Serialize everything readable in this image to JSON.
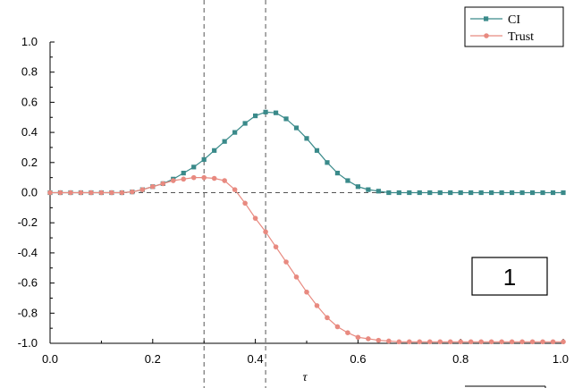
{
  "chart_data": {
    "type": "line",
    "xlabel": "τ",
    "ylabel": "",
    "xlim": [
      0.0,
      1.0
    ],
    "ylim": [
      -1.0,
      1.0
    ],
    "x_ticks": [
      "0.0",
      "0.2",
      "0.4",
      "0.6",
      "0.8",
      "1.0"
    ],
    "y_ticks": [
      "-1.0",
      "-0.8",
      "-0.6",
      "-0.4",
      "-0.2",
      "0.0",
      "0.2",
      "0.4",
      "0.6",
      "0.8",
      "1.0"
    ],
    "x_tick_values": [
      0.0,
      0.2,
      0.4,
      0.6,
      0.8,
      1.0
    ],
    "y_tick_values": [
      -1.0,
      -0.8,
      -0.6,
      -0.4,
      -0.2,
      0.0,
      0.2,
      0.4,
      0.6,
      0.8,
      1.0
    ],
    "reference_lines": {
      "vertical": [
        0.3,
        0.42
      ],
      "horizontal": [
        0.0
      ]
    },
    "legend": {
      "placement": "top-right"
    },
    "panel_label": "1",
    "series": [
      {
        "name": "CI",
        "color": "#3a8a8a",
        "marker": "square",
        "x": [
          0,
          0.02,
          0.04,
          0.06,
          0.08,
          0.1,
          0.12,
          0.14,
          0.16,
          0.18,
          0.2,
          0.22,
          0.24,
          0.26,
          0.28,
          0.3,
          0.32,
          0.34,
          0.36,
          0.38,
          0.4,
          0.42,
          0.44,
          0.46,
          0.48,
          0.5,
          0.52,
          0.54,
          0.56,
          0.58,
          0.6,
          0.62,
          0.64,
          0.66,
          0.68,
          0.7,
          0.72,
          0.74,
          0.76,
          0.78,
          0.8,
          0.82,
          0.84,
          0.86,
          0.88,
          0.9,
          0.92,
          0.94,
          0.96,
          0.98,
          1.0
        ],
        "values": [
          0,
          0,
          0,
          0,
          0,
          0,
          0,
          0,
          0.005,
          0.02,
          0.04,
          0.06,
          0.09,
          0.13,
          0.17,
          0.22,
          0.28,
          0.34,
          0.4,
          0.46,
          0.51,
          0.535,
          0.53,
          0.49,
          0.43,
          0.36,
          0.28,
          0.2,
          0.13,
          0.08,
          0.04,
          0.02,
          0.01,
          0,
          0,
          0,
          0,
          0,
          0,
          0,
          0,
          0,
          0,
          0,
          0,
          0,
          0,
          0,
          0,
          0,
          0
        ]
      },
      {
        "name": "Trust",
        "color": "#e88a80",
        "marker": "circle",
        "x": [
          0,
          0.02,
          0.04,
          0.06,
          0.08,
          0.1,
          0.12,
          0.14,
          0.16,
          0.18,
          0.2,
          0.22,
          0.24,
          0.26,
          0.28,
          0.3,
          0.32,
          0.34,
          0.36,
          0.38,
          0.4,
          0.42,
          0.44,
          0.46,
          0.48,
          0.5,
          0.52,
          0.54,
          0.56,
          0.58,
          0.6,
          0.62,
          0.64,
          0.66,
          0.68,
          0.7,
          0.72,
          0.74,
          0.76,
          0.78,
          0.8,
          0.82,
          0.84,
          0.86,
          0.88,
          0.9,
          0.92,
          0.94,
          0.96,
          0.98,
          1.0
        ],
        "values": [
          0,
          0,
          0,
          0,
          0,
          0,
          0,
          0,
          0.005,
          0.02,
          0.04,
          0.06,
          0.08,
          0.09,
          0.1,
          0.1,
          0.095,
          0.08,
          0.02,
          -0.07,
          -0.17,
          -0.26,
          -0.36,
          -0.46,
          -0.56,
          -0.66,
          -0.75,
          -0.83,
          -0.89,
          -0.93,
          -0.96,
          -0.97,
          -0.98,
          -0.985,
          -0.99,
          -0.99,
          -0.99,
          -0.99,
          -0.99,
          -0.99,
          -0.99,
          -0.99,
          -0.99,
          -0.99,
          -0.99,
          -0.99,
          -0.99,
          -0.99,
          -0.99,
          -0.99,
          -0.99
        ]
      }
    ]
  }
}
